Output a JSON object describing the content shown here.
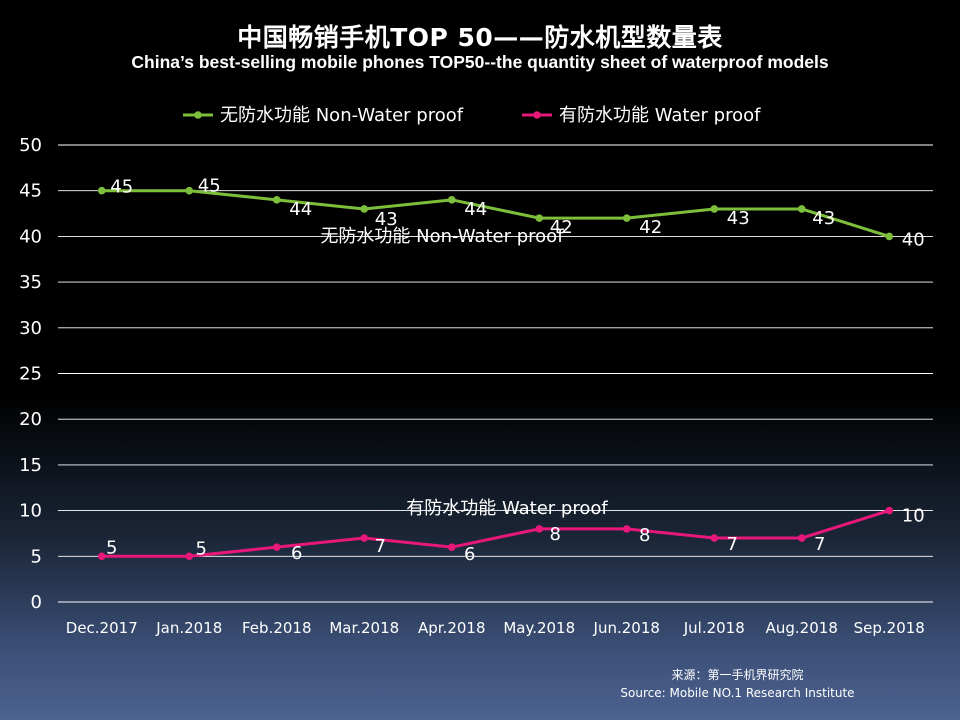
{
  "title": "中国畅销手机TOP 50——防水机型数量表",
  "subtitle": "China’s best-selling mobile phones TOP50--the quantity sheet of waterproof models",
  "source": {
    "line1": "来源：第一手机界研究院",
    "line2": "Source: Mobile NO.1 Research Institute"
  },
  "colors": {
    "non_water": "#7dbf3b",
    "water": "#e8177a",
    "grid": "#ffffff",
    "text": "#ffffff"
  },
  "chart_data": {
    "type": "line",
    "categories": [
      "Dec.2017",
      "Jan.2018",
      "Feb.2018",
      "Mar.2018",
      "Apr.2018",
      "May.2018",
      "Jun.2018",
      "Jul.2018",
      "Aug.2018",
      "Sep.2018"
    ],
    "ylim": [
      0,
      50
    ],
    "yticks": [
      0,
      5,
      10,
      15,
      20,
      25,
      30,
      35,
      40,
      45,
      50
    ],
    "grid": true,
    "legend_position": "top",
    "series": [
      {
        "name": "无防水功能  Non-Water proof",
        "values": [
          45,
          45,
          44,
          43,
          44,
          42,
          42,
          43,
          43,
          40
        ],
        "color": "#7dbf3b",
        "annotation": "无防水功能   Non-Water proof"
      },
      {
        "name": "有防水功能  Water proof",
        "values": [
          5,
          5,
          6,
          7,
          6,
          8,
          8,
          7,
          7,
          10
        ],
        "color": "#e8177a",
        "annotation": "有防水功能   Water proof"
      }
    ]
  }
}
